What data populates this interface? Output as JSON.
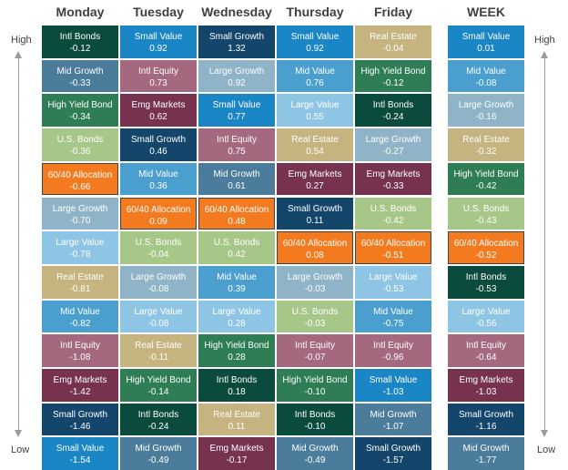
{
  "labels": {
    "high": "High",
    "low": "Low"
  },
  "colors": {
    "Intl Bonds": "#0b4b3d",
    "Small Value": "#1b86c6",
    "Small Growth": "#14456a",
    "Real Estate": "#c5b47f",
    "Mid Growth": "#4c7c9b",
    "Intl Equity": "#a4687f",
    "Large Growth": "#8fb4c8",
    "Mid Value": "#4a9fcf",
    "High Yield Bond": "#2f7d54",
    "Emg Markets": "#76324f",
    "Large Value": "#8ec5e5",
    "U.S. Bonds": "#a7c789",
    "60/40 Allocation": "#f47a20"
  },
  "chart_data": {
    "type": "table",
    "columns": [
      {
        "header": "Monday",
        "cells": [
          {
            "name": "Intl Bonds",
            "value": "-0.12"
          },
          {
            "name": "Mid Growth",
            "value": "-0.33"
          },
          {
            "name": "High Yield Bond",
            "value": "-0.34"
          },
          {
            "name": "U.S. Bonds",
            "value": "-0.36"
          },
          {
            "name": "60/40 Allocation",
            "value": "-0.66"
          },
          {
            "name": "Large Growth",
            "value": "-0.70"
          },
          {
            "name": "Large Value",
            "value": "-0.78"
          },
          {
            "name": "Real Estate",
            "value": "-0.81"
          },
          {
            "name": "Mid Value",
            "value": "-0.82"
          },
          {
            "name": "Intl Equity",
            "value": "-1.08"
          },
          {
            "name": "Emg Markets",
            "value": "-1.42"
          },
          {
            "name": "Small Growth",
            "value": "-1.46"
          },
          {
            "name": "Small Value",
            "value": "-1.54"
          }
        ]
      },
      {
        "header": "Tuesday",
        "cells": [
          {
            "name": "Small Value",
            "value": "0.92"
          },
          {
            "name": "Intl Equity",
            "value": "0.73"
          },
          {
            "name": "Emg Markets",
            "value": "0.62"
          },
          {
            "name": "Small Growth",
            "value": "0.46"
          },
          {
            "name": "Mid Value",
            "value": "0.36"
          },
          {
            "name": "60/40 Allocation",
            "value": "0.09"
          },
          {
            "name": "U.S. Bonds",
            "value": "-0.04"
          },
          {
            "name": "Large Growth",
            "value": "-0.08"
          },
          {
            "name": "Large Value",
            "value": "-0.08"
          },
          {
            "name": "Real Estate",
            "value": "-0.11"
          },
          {
            "name": "High Yield Bond",
            "value": "-0.14"
          },
          {
            "name": "Intl Bonds",
            "value": "-0.24"
          },
          {
            "name": "Mid Growth",
            "value": "-0.49"
          }
        ]
      },
      {
        "header": "Wednesday",
        "cells": [
          {
            "name": "Small Growth",
            "value": "1.32"
          },
          {
            "name": "Large Growth",
            "value": "0.92"
          },
          {
            "name": "Small Value",
            "value": "0.77"
          },
          {
            "name": "Intl Equity",
            "value": "0.75"
          },
          {
            "name": "Mid Growth",
            "value": "0.61"
          },
          {
            "name": "60/40 Allocation",
            "value": "0.48"
          },
          {
            "name": "U.S. Bonds",
            "value": "0.42"
          },
          {
            "name": "Mid Value",
            "value": "0.39"
          },
          {
            "name": "Large Value",
            "value": "0.28"
          },
          {
            "name": "High Yield Bond",
            "value": "0.28"
          },
          {
            "name": "Intl Bonds",
            "value": "0.18"
          },
          {
            "name": "Real Estate",
            "value": "0.11"
          },
          {
            "name": "Emg Markets",
            "value": "-0.17"
          }
        ]
      },
      {
        "header": "Thursday",
        "cells": [
          {
            "name": "Small Value",
            "value": "0.92"
          },
          {
            "name": "Mid Value",
            "value": "0.76"
          },
          {
            "name": "Large Value",
            "value": "0.55"
          },
          {
            "name": "Real Estate",
            "value": "0.54"
          },
          {
            "name": "Emg Markets",
            "value": "0.27"
          },
          {
            "name": "Small Growth",
            "value": "0.11"
          },
          {
            "name": "60/40 Allocation",
            "value": "0.08"
          },
          {
            "name": "Large Growth",
            "value": "-0.03"
          },
          {
            "name": "U.S. Bonds",
            "value": "-0.03"
          },
          {
            "name": "Intl Equity",
            "value": "-0.07"
          },
          {
            "name": "High Yield Bond",
            "value": "-0.10"
          },
          {
            "name": "Intl Bonds",
            "value": "-0.10"
          },
          {
            "name": "Mid Growth",
            "value": "-0.49"
          }
        ]
      },
      {
        "header": "Friday",
        "cells": [
          {
            "name": "Real Estate",
            "value": "-0.04"
          },
          {
            "name": "High Yield Bond",
            "value": "-0.12"
          },
          {
            "name": "Intl Bonds",
            "value": "-0.24"
          },
          {
            "name": "Large Growth",
            "value": "-0.27"
          },
          {
            "name": "Emg Markets",
            "value": "-0.33"
          },
          {
            "name": "U.S. Bonds",
            "value": "-0.42"
          },
          {
            "name": "60/40 Allocation",
            "value": "-0.51"
          },
          {
            "name": "Large Value",
            "value": "-0.53"
          },
          {
            "name": "Mid Value",
            "value": "-0.75"
          },
          {
            "name": "Intl Equity",
            "value": "-0.96"
          },
          {
            "name": "Small Value",
            "value": "-1.03"
          },
          {
            "name": "Mid Growth",
            "value": "-1.07"
          },
          {
            "name": "Small Growth",
            "value": "-1.57"
          }
        ]
      },
      {
        "header": "WEEK",
        "cells": [
          {
            "name": "Small Value",
            "value": "0.01"
          },
          {
            "name": "Mid Value",
            "value": "-0.08"
          },
          {
            "name": "Large Growth",
            "value": "-0.16"
          },
          {
            "name": "Real Estate",
            "value": "-0.32"
          },
          {
            "name": "High Yield Bond",
            "value": "-0.42"
          },
          {
            "name": "U.S. Bonds",
            "value": "-0.43"
          },
          {
            "name": "60/40 Allocation",
            "value": "-0.52"
          },
          {
            "name": "Intl Bonds",
            "value": "-0.53"
          },
          {
            "name": "Large Value",
            "value": "-0.56"
          },
          {
            "name": "Intl Equity",
            "value": "-0.64"
          },
          {
            "name": "Emg Markets",
            "value": "-1.03"
          },
          {
            "name": "Small Growth",
            "value": "-1.16"
          },
          {
            "name": "Mid Growth",
            "value": "-1.77"
          }
        ]
      }
    ]
  }
}
